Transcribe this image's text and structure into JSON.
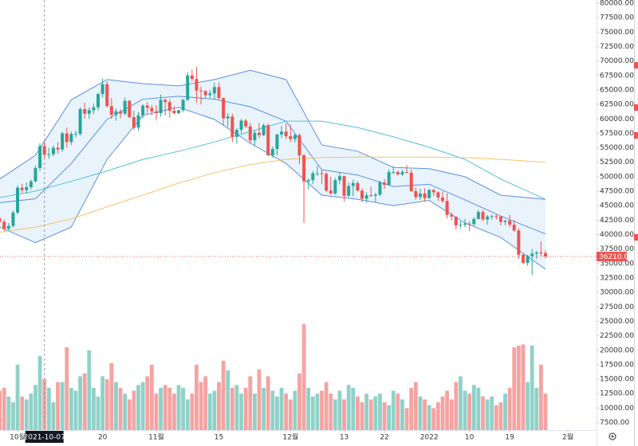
{
  "chart_data": {
    "type": "candlestick",
    "x": [
      "2021-09-27",
      "2021-09-28",
      "2021-09-29",
      "2021-09-30",
      "2021-10-01",
      "2021-10-02",
      "2021-10-03",
      "2021-10-04",
      "2021-10-05",
      "2021-10-06",
      "2021-10-07",
      "2021-10-08",
      "2021-10-09",
      "2021-10-10",
      "2021-10-11",
      "2021-10-12",
      "2021-10-13",
      "2021-10-14",
      "2021-10-15",
      "2021-10-16",
      "2021-10-17",
      "2021-10-18",
      "2021-10-19",
      "2021-10-20",
      "2021-10-21",
      "2021-10-22",
      "2021-10-23",
      "2021-10-24",
      "2021-10-25",
      "2021-10-26",
      "2021-10-27",
      "2021-10-28",
      "2021-10-29",
      "2021-10-30",
      "2021-10-31",
      "2021-11-01",
      "2021-11-02",
      "2021-11-03",
      "2021-11-04",
      "2021-11-05",
      "2021-11-06",
      "2021-11-07",
      "2021-11-08",
      "2021-11-09",
      "2021-11-10",
      "2021-11-11",
      "2021-11-12",
      "2021-11-13",
      "2021-11-14",
      "2021-11-15",
      "2021-11-16",
      "2021-11-17",
      "2021-11-18",
      "2021-11-19",
      "2021-11-20",
      "2021-11-21",
      "2021-11-22",
      "2021-11-23",
      "2021-11-24",
      "2021-11-25",
      "2021-11-26",
      "2021-11-27",
      "2021-11-28",
      "2021-11-29",
      "2021-11-30",
      "2021-12-01",
      "2021-12-02",
      "2021-12-03",
      "2021-12-04",
      "2021-12-05",
      "2021-12-06",
      "2021-12-07",
      "2021-12-08",
      "2021-12-09",
      "2021-12-10",
      "2021-12-11",
      "2021-12-12",
      "2021-12-13",
      "2021-12-14",
      "2021-12-15",
      "2021-12-16",
      "2021-12-17",
      "2021-12-18",
      "2021-12-19",
      "2021-12-20",
      "2021-12-21",
      "2021-12-22",
      "2021-12-23",
      "2021-12-24",
      "2021-12-25",
      "2021-12-26",
      "2021-12-27",
      "2021-12-28",
      "2021-12-29",
      "2021-12-30",
      "2021-12-31",
      "2022-01-01",
      "2022-01-02",
      "2022-01-03",
      "2022-01-04",
      "2022-01-05",
      "2022-01-06",
      "2022-01-07",
      "2022-01-08",
      "2022-01-09",
      "2022-01-10",
      "2022-01-11",
      "2022-01-12",
      "2022-01-13",
      "2022-01-14",
      "2022-01-15",
      "2022-01-16",
      "2022-01-17",
      "2022-01-18",
      "2022-01-19",
      "2022-01-20",
      "2022-01-21",
      "2022-01-22",
      "2022-01-23",
      "2022-01-24",
      "2022-01-25",
      "2022-01-26",
      "2022-01-27"
    ],
    "open": [
      42800,
      42200,
      41000,
      41500,
      43800,
      48100,
      47700,
      48200,
      49200,
      51500,
      55300,
      53800,
      53900,
      55000,
      54700,
      57500,
      56000,
      57400,
      57400,
      61700,
      60900,
      61500,
      62000,
      64300,
      66000,
      62200,
      60700,
      61300,
      60900,
      63100,
      60300,
      58500,
      60600,
      62300,
      61900,
      61300,
      61000,
      63300,
      62900,
      61400,
      61000,
      61500,
      63300,
      67500,
      66900,
      64900,
      64800,
      64100,
      64400,
      65500,
      63600,
      60100,
      60400,
      56900,
      58100,
      59700,
      58700,
      56300,
      57600,
      57200,
      58900,
      53700,
      54800,
      57300,
      57800,
      57000,
      56500,
      57200,
      53700,
      49200,
      49400,
      50600,
      50600,
      50500,
      47600,
      47100,
      49400,
      50100,
      46700,
      48400,
      48900,
      47600,
      46200,
      46800,
      46700,
      46900,
      49000,
      48600,
      50800,
      50800,
      50400,
      50800,
      50700,
      47500,
      46500,
      47100,
      46300,
      47700,
      47300,
      46400,
      45800,
      43400,
      43100,
      41600,
      41700,
      41900,
      41800,
      42700,
      43900,
      42600,
      43100,
      43200,
      43100,
      42200,
      42400,
      41700,
      40700,
      36500,
      35100,
      36300,
      36700,
      36900,
      36800
    ],
    "high": [
      43300,
      42600,
      42000,
      44200,
      48500,
      48800,
      49000,
      49500,
      51900,
      55800,
      56100,
      55000,
      55400,
      56000,
      57800,
      58500,
      57800,
      58000,
      62000,
      62800,
      62000,
      62600,
      64500,
      67000,
      66500,
      63600,
      61800,
      61700,
      63700,
      63300,
      61400,
      61200,
      62500,
      62900,
      62400,
      62400,
      64200,
      63500,
      63400,
      62200,
      61600,
      63400,
      68100,
      68500,
      69000,
      65600,
      65000,
      65000,
      66300,
      66300,
      63700,
      61000,
      60900,
      58400,
      60000,
      60000,
      59300,
      58000,
      59300,
      59200,
      59200,
      55200,
      57400,
      58800,
      59200,
      59000,
      57400,
      57500,
      53900,
      49700,
      51000,
      51900,
      51200,
      50800,
      50000,
      49800,
      50700,
      50200,
      49000,
      49500,
      49200,
      48000,
      47300,
      48300,
      47200,
      49300,
      49600,
      51300,
      51800,
      51100,
      51200,
      52000,
      51200,
      48100,
      48000,
      48000,
      47900,
      47900,
      47500,
      47500,
      47100,
      43800,
      43100,
      42300,
      42700,
      42300,
      43000,
      44300,
      44300,
      43400,
      43400,
      43500,
      43300,
      42600,
      43400,
      42500,
      41100,
      36800,
      36500,
      37500,
      37200,
      38800,
      37300
    ],
    "low": [
      41800,
      40600,
      40600,
      41200,
      43500,
      47200,
      47100,
      47800,
      49000,
      51000,
      53200,
      53100,
      53500,
      54000,
      54300,
      55000,
      55500,
      56800,
      57100,
      60000,
      60000,
      60800,
      61500,
      63700,
      62000,
      60000,
      59700,
      60100,
      60600,
      60100,
      58100,
      58000,
      60100,
      60900,
      60600,
      59800,
      60400,
      60600,
      60200,
      60800,
      60800,
      61200,
      63100,
      66400,
      62800,
      62500,
      63500,
      63600,
      63400,
      63200,
      58800,
      58600,
      56000,
      55700,
      57500,
      58400,
      55700,
      55400,
      56600,
      57000,
      53600,
      53300,
      53700,
      56700,
      56500,
      56000,
      55900,
      52200,
      42000,
      47800,
      48700,
      50100,
      48700,
      47400,
      46900,
      46900,
      48700,
      45700,
      46500,
      46600,
      47500,
      45600,
      45500,
      46500,
      45600,
      46600,
      47900,
      48500,
      50500,
      50200,
      50100,
      50600,
      47400,
      46000,
      46000,
      45700,
      46200,
      46700,
      45800,
      45500,
      42800,
      42400,
      40900,
      41100,
      41300,
      40600,
      41300,
      42600,
      42300,
      41700,
      42600,
      42600,
      41600,
      41600,
      41300,
      40500,
      35800,
      34900,
      34600,
      33000,
      35800,
      36300,
      35900
    ],
    "close": [
      42200,
      41000,
      41500,
      43800,
      48100,
      47700,
      48200,
      49200,
      51500,
      55300,
      53800,
      53900,
      55000,
      54700,
      57500,
      56000,
      57400,
      57400,
      61700,
      60900,
      61500,
      62000,
      64300,
      66000,
      62200,
      60700,
      61300,
      60900,
      63100,
      60300,
      58500,
      60600,
      62300,
      61900,
      61300,
      61000,
      63300,
      62900,
      61400,
      61000,
      61500,
      63300,
      67500,
      66900,
      64900,
      64800,
      64100,
      64400,
      65500,
      63600,
      60100,
      60400,
      56900,
      58100,
      59700,
      58700,
      56300,
      57600,
      57200,
      58900,
      53700,
      54800,
      57300,
      57800,
      57000,
      56500,
      57200,
      53700,
      49200,
      49400,
      50600,
      50600,
      50500,
      47600,
      47100,
      49400,
      50100,
      46700,
      48400,
      48900,
      47600,
      46200,
      46800,
      46700,
      46900,
      49000,
      48600,
      50800,
      50800,
      50400,
      50800,
      50700,
      47500,
      46500,
      47100,
      46300,
      47700,
      47300,
      46400,
      45800,
      43400,
      43100,
      41600,
      41700,
      41900,
      41800,
      42700,
      43900,
      42600,
      43100,
      43200,
      43100,
      42200,
      42400,
      41700,
      40700,
      36500,
      35100,
      36300,
      36700,
      36900,
      36800,
      36210
    ],
    "volume": [
      13000,
      13500,
      12000,
      11000,
      17500,
      12000,
      11500,
      12500,
      14000,
      19000,
      15000,
      13500,
      11000,
      14500,
      14500,
      20500,
      13500,
      13000,
      15500,
      16000,
      20000,
      13500,
      12000,
      15500,
      15000,
      17800,
      14500,
      13500,
      12500,
      11500,
      13000,
      14000,
      14500,
      15500,
      17500,
      12500,
      13500,
      14000,
      13500,
      12500,
      14000,
      13500,
      11500,
      12500,
      17500,
      14500,
      15500,
      12500,
      13000,
      14500,
      18200,
      16500,
      13500,
      14000,
      12500,
      13500,
      15500,
      12500,
      16700,
      13500,
      15500,
      13000,
      12000,
      13500,
      12500,
      11500,
      13000,
      16000,
      24500,
      13500,
      12000,
      12500,
      13000,
      14500,
      12500,
      11500,
      13000,
      11500,
      14000,
      13500,
      12000,
      11000,
      12500,
      11500,
      12000,
      12500,
      11000,
      10500,
      13000,
      12500,
      11500,
      10000,
      13500,
      14500,
      12000,
      11500,
      10500,
      10000,
      11000,
      12000,
      13000,
      11500,
      14500,
      15500,
      13000,
      12500,
      14000,
      13500,
      12000,
      11500,
      12000,
      10500,
      11000,
      12500,
      13500,
      20500,
      20800,
      21000,
      14500,
      20800,
      13500,
      17500,
      12500
    ],
    "up_color": "#26a69a",
    "down_color": "#ef5350",
    "volume_up_color": "#8fd1c8",
    "volume_down_color": "#f5a3a1",
    "indicators_x": [
      "2021-09-27",
      "2021-10-05",
      "2021-10-13",
      "2021-10-21",
      "2021-10-29",
      "2021-11-06",
      "2021-11-14",
      "2021-11-22",
      "2021-11-30",
      "2021-12-08",
      "2021-12-16",
      "2021-12-24",
      "2022-01-01",
      "2022-01-09",
      "2022-01-17",
      "2022-01-27"
    ],
    "band_fill": "#e3f0fb",
    "indicators": [
      {
        "color": "#5b8ee6",
        "values": [
          49600,
          53700,
          63300,
          66800,
          66100,
          65700,
          66800,
          68400,
          66800,
          55500,
          54400,
          51600,
          51400,
          50000,
          46800,
          46100
        ]
      },
      {
        "color": "#5b8ee6",
        "values": [
          45500,
          46200,
          52300,
          59900,
          63400,
          63900,
          63400,
          62100,
          59600,
          51200,
          50300,
          48300,
          48700,
          46000,
          43200,
          40100
        ]
      },
      {
        "color": "#5b8ee6",
        "values": [
          41300,
          38600,
          41300,
          53000,
          60600,
          62000,
          59900,
          55800,
          52300,
          46800,
          46100,
          45000,
          45900,
          42000,
          39500,
          34000
        ]
      },
      {
        "color": "#4fc3d9",
        "values": [
          46400,
          47500,
          49200,
          51000,
          53000,
          54400,
          56000,
          57800,
          59600,
          59600,
          58500,
          56900,
          55100,
          53000,
          49600,
          46100
        ]
      },
      {
        "color": "#f3c46a",
        "values": [
          40400,
          41300,
          42700,
          44800,
          46800,
          48900,
          50700,
          52100,
          53000,
          53300,
          53400,
          53400,
          53400,
          53300,
          53000,
          52500
        ]
      }
    ],
    "ylim": [
      6200,
      80550
    ],
    "yticks": [
      {
        "value": 7500,
        "label": "7500.00"
      },
      {
        "value": 10000,
        "label": "10000.00"
      },
      {
        "value": 12500,
        "label": "12500.00"
      },
      {
        "value": 15000,
        "label": "15000.00"
      },
      {
        "value": 17500,
        "label": "17500.00"
      },
      {
        "value": 20000,
        "label": "20000.00"
      },
      {
        "value": 22500,
        "label": "22500.00"
      },
      {
        "value": 25000,
        "label": "25000.00"
      },
      {
        "value": 27500,
        "label": "27500.00"
      },
      {
        "value": 30000,
        "label": "30000.00"
      },
      {
        "value": 32500,
        "label": "32500.00"
      },
      {
        "value": 35000,
        "label": "35000.00"
      },
      {
        "value": 37500,
        "label": "37500.00"
      },
      {
        "value": 40000,
        "label": "40000.00"
      },
      {
        "value": 42500,
        "label": "42500.00"
      },
      {
        "value": 45000,
        "label": "45000.00"
      },
      {
        "value": 47500,
        "label": "47500.00"
      },
      {
        "value": 50000,
        "label": "50000.00"
      },
      {
        "value": 52500,
        "label": "52500.00"
      },
      {
        "value": 55000,
        "label": "55000.00"
      },
      {
        "value": 57500,
        "label": "57500.00"
      },
      {
        "value": 60000,
        "label": "60000.00"
      },
      {
        "value": 62500,
        "label": "62500.00"
      },
      {
        "value": 65000,
        "label": "65000.00"
      },
      {
        "value": 67500,
        "label": "67500.00"
      },
      {
        "value": 70000,
        "label": "70000.00"
      },
      {
        "value": 72500,
        "label": "72500.00"
      },
      {
        "value": 75000,
        "label": "75000.00"
      },
      {
        "value": 77500,
        "label": "77500.00"
      },
      {
        "value": 80000,
        "label": "80000.00"
      }
    ],
    "xticks": [
      {
        "value": "2021-10-01",
        "label": "10월"
      },
      {
        "value": "2021-10-20",
        "label": "20"
      },
      {
        "value": "2021-11-01",
        "label": "11월"
      },
      {
        "value": "2021-11-15",
        "label": "15"
      },
      {
        "value": "2021-12-01",
        "label": "12월"
      },
      {
        "value": "2021-12-13",
        "label": "13"
      },
      {
        "value": "2021-12-22",
        "label": "22"
      },
      {
        "value": "2022-01-01",
        "label": "2022"
      },
      {
        "value": "2022-01-10",
        "label": "10"
      },
      {
        "value": "2022-01-19",
        "label": "19"
      },
      {
        "value": "2022-02-01",
        "label": "2월"
      }
    ],
    "crosshair": "2021-10-07",
    "price_line": {
      "value": 36210,
      "label": "36210.00"
    },
    "grid": false
  }
}
